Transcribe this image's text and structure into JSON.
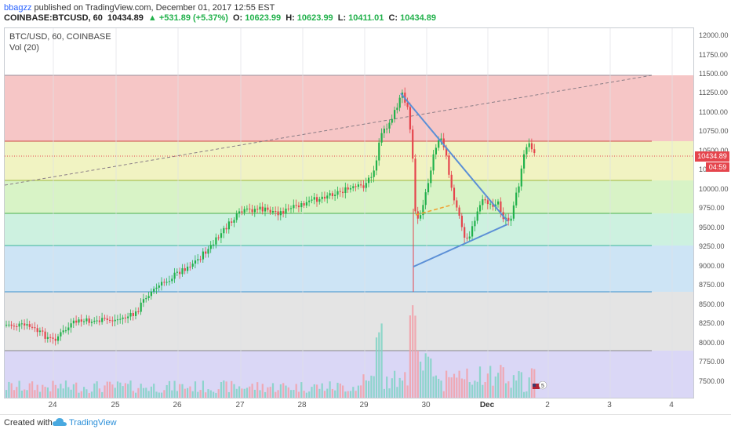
{
  "header": {
    "author": "bbagzz",
    "published": "published on TradingView.com, December 01, 2017 12:55 EST",
    "symbol": "COINBASE:BTCUSD, 60",
    "last": "10434.89",
    "change": "▲ +531.89 (+5.37%)",
    "o_label": "O:",
    "o_val": "10623.99",
    "h_label": "H:",
    "h_val": "10623.99",
    "l_label": "L:",
    "l_val": "10411.01",
    "c_label": "C:",
    "c_val": "10434.89"
  },
  "legend": {
    "main": "BTC/USD, 60, COINBASE",
    "volume": "Vol (20)"
  },
  "price_axis": [
    "12000.00",
    "11750.00",
    "11500.00",
    "11250.00",
    "11000.00",
    "10750.00",
    "10500.00",
    "10250.00",
    "10000.00",
    "9750.00",
    "9500.00",
    "9250.00",
    "9000.00",
    "8750.00",
    "8500.00",
    "8250.00",
    "8000.00",
    "7750.00",
    "7500.00"
  ],
  "current_price_label": "10434.89",
  "current_time_label": "04:59",
  "time_axis": [
    "24",
    "25",
    "26",
    "27",
    "28",
    "29",
    "30",
    "Dec",
    "2",
    "3",
    "4"
  ],
  "footer": {
    "created_with": "Created with",
    "brand": "TradingView"
  },
  "badge": "5",
  "colors": {
    "up": "#21b14b",
    "down": "#e5454d",
    "trendline": "#5b8fd6",
    "zone_red": "#f6c6c6",
    "zone_yellow": "#f1f3c2",
    "zone_green": "#d3f2c9",
    "zone_teal": "#cdf1e3",
    "zone_blue": "#cde4f5",
    "zone_grey": "#e3e3e3",
    "zone_purple": "#d9d6f5"
  }
}
